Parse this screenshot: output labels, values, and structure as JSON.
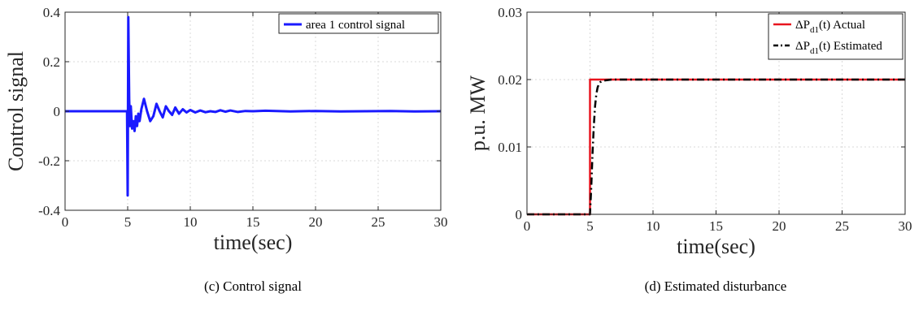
{
  "chart_data": [
    {
      "type": "line",
      "xlabel": "time(sec)",
      "ylabel": "Control signal",
      "caption": "(c) Control signal",
      "xlim": [
        0,
        30
      ],
      "ylim": [
        -0.4,
        0.4
      ],
      "xticks": [
        0,
        5,
        10,
        15,
        20,
        25,
        30
      ],
      "yticks": [
        -0.4,
        -0.2,
        0,
        0.2,
        0.4
      ],
      "xtick_labels": [
        "0",
        "5",
        "10",
        "15",
        "20",
        "25",
        "30"
      ],
      "ytick_labels": [
        "-0.4",
        "-0.2",
        "0",
        "0.2",
        "0.4"
      ],
      "grid": true,
      "legend": "top-right",
      "series": [
        {
          "name": "area 1 control signal",
          "color": "#1a1aff",
          "x": [
            0,
            4.95,
            5.0,
            5.05,
            5.12,
            5.18,
            5.25,
            5.35,
            5.45,
            5.55,
            5.65,
            5.75,
            5.85,
            5.95,
            6.1,
            6.3,
            6.55,
            6.8,
            7.05,
            7.3,
            7.55,
            7.8,
            8.05,
            8.3,
            8.55,
            8.8,
            9.1,
            9.4,
            9.7,
            10.0,
            10.4,
            10.8,
            11.2,
            11.6,
            12.0,
            12.4,
            12.8,
            13.2,
            13.8,
            14.4,
            15.0,
            16,
            18,
            20,
            22,
            24,
            26,
            28,
            30
          ],
          "y": [
            0,
            0,
            -0.34,
            0.38,
            0.05,
            -0.06,
            0.02,
            -0.07,
            -0.04,
            -0.08,
            -0.02,
            -0.06,
            -0.01,
            -0.04,
            0.01,
            0.05,
            0.0,
            -0.04,
            -0.02,
            0.03,
            0.0,
            -0.025,
            0.02,
            0.0,
            -0.015,
            0.015,
            -0.01,
            0.008,
            -0.005,
            0.005,
            -0.005,
            0.003,
            -0.004,
            0.0,
            -0.003,
            0.004,
            -0.002,
            0.003,
            -0.003,
            0.001,
            0.0,
            0.002,
            -0.001,
            0.001,
            -0.001,
            0.0,
            0.001,
            -0.001,
            0
          ]
        }
      ]
    },
    {
      "type": "line",
      "xlabel": "time(sec)",
      "ylabel": "p.u. MW",
      "caption": "(d) Estimated disturbance",
      "xlim": [
        0,
        30
      ],
      "ylim": [
        0,
        0.03
      ],
      "xticks": [
        0,
        5,
        10,
        15,
        20,
        25,
        30
      ],
      "yticks": [
        0,
        0.01,
        0.02,
        0.03
      ],
      "xtick_labels": [
        "0",
        "5",
        "10",
        "15",
        "20",
        "25",
        "30"
      ],
      "ytick_labels": [
        "0",
        "0.01",
        "0.02",
        "0.03"
      ],
      "grid": true,
      "legend": "top-right",
      "series": [
        {
          "name_main": "ΔP",
          "name_sub": "d1",
          "name_rest": "(t) Actual",
          "color": "#e8141e",
          "dash": "solid",
          "x": [
            0,
            5.0,
            5.0,
            30
          ],
          "y": [
            0,
            0,
            0.02,
            0.02
          ]
        },
        {
          "name_main": "ΔP",
          "name_sub": "d1",
          "name_rest": "(t) Estimated",
          "color": "#000000",
          "dash": "dashdot",
          "x": [
            0,
            5.0,
            5.1,
            5.2,
            5.3,
            5.4,
            5.5,
            5.6,
            5.7,
            5.8,
            6.0,
            6.3,
            6.7,
            7.5,
            30
          ],
          "y": [
            0,
            0,
            0.004,
            0.009,
            0.013,
            0.016,
            0.0178,
            0.0188,
            0.0193,
            0.0196,
            0.0198,
            0.0199,
            0.02,
            0.02,
            0.02
          ]
        }
      ]
    }
  ]
}
